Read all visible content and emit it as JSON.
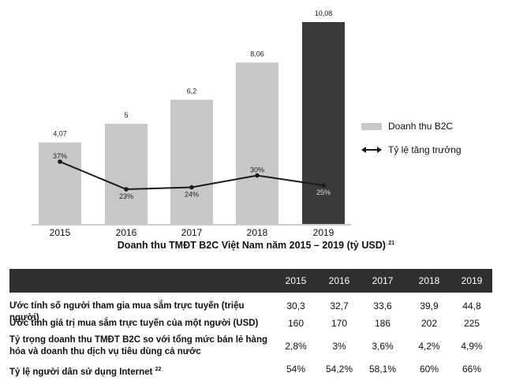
{
  "chart_data": {
    "type": "bar",
    "categories": [
      "2015",
      "2016",
      "2017",
      "2018",
      "2019"
    ],
    "series": [
      {
        "name": "Doanh thu B2C",
        "kind": "bar",
        "values": [
          4.07,
          5,
          6.2,
          8.06,
          10.08
        ],
        "labels": [
          "4,07",
          "5",
          "6,2",
          "8,06",
          "10,08"
        ],
        "colors": [
          "#c8c8c8",
          "#c8c8c8",
          "#c8c8c8",
          "#c8c8c8",
          "#3a3a3a"
        ]
      },
      {
        "name": "Tỷ lệ tăng trưởng",
        "kind": "line",
        "values": [
          37,
          23,
          24,
          30,
          25
        ],
        "labels": [
          "37%",
          "23%",
          "24%",
          "30%",
          "25%"
        ]
      }
    ],
    "ylim_bar": [
      0,
      10.08
    ],
    "legend_position": "right",
    "title": "Doanh thu TMĐT B2C Việt Nam năm 2015 – 2019 (tỷ USD)",
    "title_footnote": "21"
  },
  "table": {
    "headers": [
      "2015",
      "2016",
      "2017",
      "2018",
      "2019"
    ],
    "rows": [
      {
        "label_lines": [
          "Ước tính số người tham gia mua sắm trực tuyến (triệu người)"
        ],
        "footnote": "",
        "values": [
          "30,3",
          "32,7",
          "33,6",
          "39,9",
          "44,8"
        ]
      },
      {
        "label_lines": [
          "Ước tính giá trị mua sắm trực tuyến của một người (USD)"
        ],
        "footnote": "",
        "values": [
          "160",
          "170",
          "186",
          "202",
          "225"
        ]
      },
      {
        "label_lines": [
          "Tỷ trọng doanh thu TMĐT B2C so với tổng mức bán lẻ hàng",
          "hóa và doanh thu dịch vụ tiêu dùng cả nước"
        ],
        "footnote": "",
        "values": [
          "2,8%",
          "3%",
          "3,6%",
          "4,2%",
          "4,9%"
        ]
      },
      {
        "label_lines": [
          "Tỷ lệ người dân sử dụng Internet"
        ],
        "footnote": "22",
        "values": [
          "54%",
          "54,2%",
          "58,1%",
          "60%",
          "66%"
        ]
      }
    ]
  },
  "colors": {
    "bar": "#c8c8c8",
    "bar_highlight": "#3a3a3a",
    "line": "#1a1a1a",
    "table_header": "#2f2f2f"
  }
}
